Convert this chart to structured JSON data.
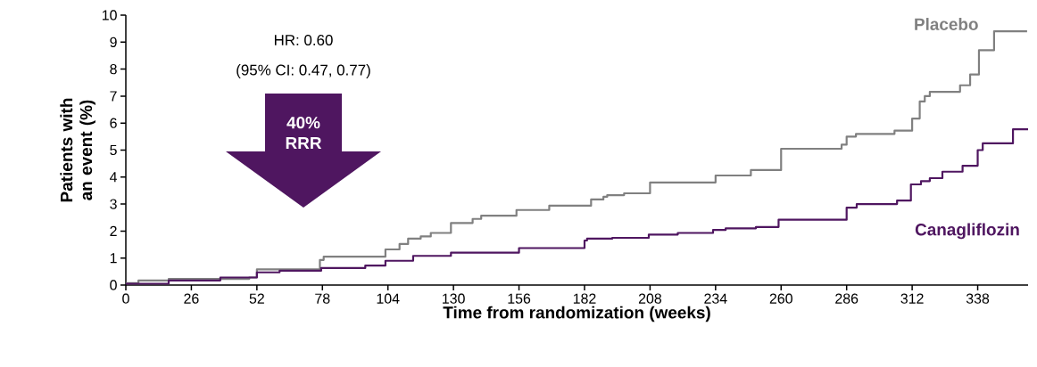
{
  "chart_data": {
    "type": "step",
    "xlabel": "Time from randomization (weeks)",
    "ylabel": "Patients with an event (%)",
    "xlim": [
      0,
      358
    ],
    "xticks": [
      0,
      26,
      52,
      78,
      104,
      130,
      156,
      182,
      208,
      234,
      260,
      286,
      312,
      338
    ],
    "ylim": [
      0,
      10
    ],
    "yticks": [
      0,
      1,
      2,
      3,
      4,
      5,
      6,
      7,
      8,
      9,
      10
    ],
    "grid": false,
    "marker": "none",
    "line_style": "solid",
    "annotations": [
      "HR: 0.60",
      "(95% CI: 0.47, 0.77)",
      "40% RRR"
    ],
    "series": [
      {
        "name": "Placebo",
        "color": "#808080",
        "x": [
          0,
          5,
          17,
          49,
          52,
          77,
          78.5,
          103,
          108.6,
          112,
          117,
          121,
          129,
          137.6,
          141,
          155,
          168,
          184.6,
          189.5,
          191,
          197.7,
          208,
          234,
          248,
          260,
          284,
          286,
          289.7,
          305,
          312,
          315,
          317,
          319,
          331,
          335,
          338.5,
          344.5,
          357.6
        ],
        "values": [
          0.07,
          0.17,
          0.23,
          0.28,
          0.58,
          0.93,
          1.05,
          1.32,
          1.52,
          1.72,
          1.8,
          1.93,
          2.3,
          2.45,
          2.57,
          2.78,
          2.94,
          3.17,
          3.27,
          3.33,
          3.4,
          3.8,
          4.06,
          4.26,
          5.05,
          5.2,
          5.5,
          5.6,
          5.72,
          6.17,
          6.8,
          7.0,
          7.16,
          7.4,
          7.8,
          8.7,
          9.4,
          9.4
        ]
      },
      {
        "name": "Canagliflozin",
        "color": "#4f1660",
        "x": [
          0,
          17,
          37.5,
          52,
          61,
          77.5,
          95,
          103,
          114,
          129,
          156,
          182,
          183,
          193,
          207.5,
          219,
          233,
          238,
          250,
          259,
          286,
          290,
          306,
          311.5,
          315.5,
          319,
          324,
          332,
          338,
          340,
          352,
          358
        ],
        "values": [
          0.05,
          0.17,
          0.28,
          0.47,
          0.53,
          0.63,
          0.72,
          0.9,
          1.08,
          1.2,
          1.37,
          1.65,
          1.72,
          1.75,
          1.87,
          1.93,
          2.04,
          2.1,
          2.15,
          2.42,
          2.87,
          3.0,
          3.13,
          3.73,
          3.85,
          3.96,
          4.2,
          4.42,
          5.0,
          5.25,
          5.77,
          5.77
        ]
      }
    ]
  }
}
